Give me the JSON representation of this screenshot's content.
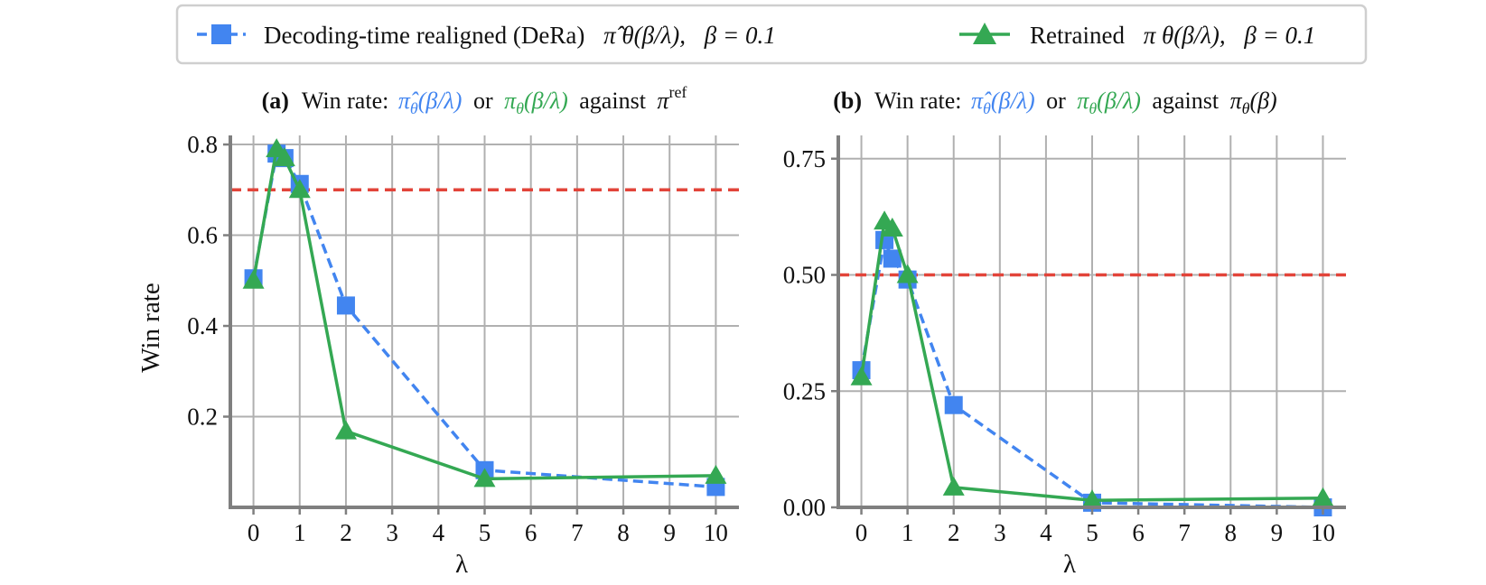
{
  "colors": {
    "blue": "#4285f0",
    "green": "#34a853",
    "red": "#e2443a",
    "grid": "#b0b0b0",
    "spine": "#7f7f7f"
  },
  "legend": {
    "placement": "top-center",
    "items": [
      {
        "series": "dera",
        "label": "Decoding-time realigned (DeRa)",
        "symbol": "π̂",
        "arg": "θ(β/λ),",
        "param": "β = 0.1"
      },
      {
        "series": "retrained",
        "label": "Retrained",
        "symbol": "π",
        "arg": "θ(β/λ),",
        "param": "β = 0.1"
      }
    ]
  },
  "chart_data": [
    {
      "type": "line",
      "title": {
        "panel": "(a)",
        "lead": "Win rate:",
        "hat_term": {
          "sym": "π̂",
          "sub": "θ",
          "arg": "(β/λ)"
        },
        "or": "or",
        "plain_term": {
          "sym": "π",
          "sub": "θ",
          "arg": "(β/λ)"
        },
        "against": "against",
        "opponent": {
          "sym": "π",
          "sup": "ref"
        }
      },
      "xlabel": "λ",
      "ylabel": "Win rate",
      "xlim": [
        -0.5,
        10.5
      ],
      "ylim": [
        0.0,
        0.82
      ],
      "xticks": [
        0,
        1,
        2,
        3,
        4,
        5,
        6,
        7,
        8,
        9,
        10
      ],
      "yticks": [
        0.2,
        0.4,
        0.6,
        0.8
      ],
      "ytick_labels": [
        "0.2",
        "0.4",
        "0.6",
        "0.8"
      ],
      "reference_line": {
        "y": 0.7,
        "style": "dashed"
      },
      "grid": true,
      "series": [
        {
          "key": "dera",
          "marker": "square",
          "style": "dashed",
          "x": [
            0,
            0.5,
            0.67,
            1,
            2,
            5,
            10
          ],
          "y": [
            0.505,
            0.78,
            0.77,
            0.713,
            0.445,
            0.082,
            0.045
          ]
        },
        {
          "key": "retrained",
          "marker": "triangle",
          "style": "solid",
          "x": [
            0,
            0.5,
            0.67,
            1,
            2,
            5,
            10
          ],
          "y": [
            0.5,
            0.79,
            0.77,
            0.7,
            0.168,
            0.063,
            0.07
          ]
        }
      ]
    },
    {
      "type": "line",
      "title": {
        "panel": "(b)",
        "lead": "Win rate:",
        "hat_term": {
          "sym": "π̂",
          "sub": "θ",
          "arg": "(β/λ)"
        },
        "or": "or",
        "plain_term": {
          "sym": "π",
          "sub": "θ",
          "arg": "(β/λ)"
        },
        "against": "against",
        "opponent": {
          "sym": "π",
          "sub": "θ",
          "arg": "(β)"
        }
      },
      "xlabel": "λ",
      "ylabel": "",
      "xlim": [
        -0.5,
        10.5
      ],
      "ylim": [
        0.0,
        0.8
      ],
      "xticks": [
        0,
        1,
        2,
        3,
        4,
        5,
        6,
        7,
        8,
        9,
        10
      ],
      "yticks": [
        0.0,
        0.25,
        0.5,
        0.75
      ],
      "ytick_labels": [
        "0.00",
        "0.25",
        "0.50",
        "0.75"
      ],
      "reference_line": {
        "y": 0.5,
        "style": "dashed"
      },
      "grid": true,
      "series": [
        {
          "key": "dera",
          "marker": "square",
          "style": "dashed",
          "x": [
            0,
            0.5,
            0.67,
            1,
            2,
            5,
            10
          ],
          "y": [
            0.295,
            0.575,
            0.535,
            0.49,
            0.22,
            0.01,
            0.0
          ]
        },
        {
          "key": "retrained",
          "marker": "triangle",
          "style": "solid",
          "x": [
            0,
            0.5,
            0.67,
            1,
            2,
            5,
            10
          ],
          "y": [
            0.28,
            0.615,
            0.6,
            0.5,
            0.043,
            0.015,
            0.02
          ]
        }
      ]
    }
  ]
}
